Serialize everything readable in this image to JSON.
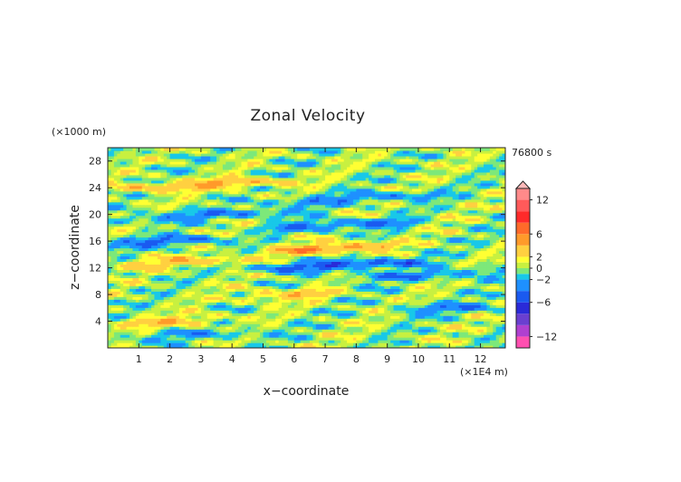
{
  "chart_data": {
    "type": "heatmap",
    "title": "Zonal Velocity",
    "time_label": "76800 s",
    "xlabel": "x−coordinate",
    "ylabel": "z−coordinate",
    "x_unit": "(×1E4 m)",
    "y_unit": "(×1000 m)",
    "xlim": [
      0,
      12.8
    ],
    "ylim": [
      0,
      30
    ],
    "x_ticks": [
      1,
      2,
      3,
      4,
      5,
      6,
      7,
      8,
      9,
      10,
      11,
      12
    ],
    "x_tick_labels": [
      "1",
      "2",
      "3",
      "4",
      "5",
      "6",
      "7",
      "8",
      "9",
      "10",
      "11",
      "12"
    ],
    "y_ticks": [
      4,
      8,
      12,
      16,
      20,
      24,
      28
    ],
    "y_tick_labels": [
      "4",
      "8",
      "12",
      "16",
      "20",
      "24",
      "28"
    ],
    "colorbar": {
      "levels": [
        -14,
        -12,
        -10,
        -8,
        -6,
        -4,
        -2,
        -1,
        0,
        1,
        2,
        4,
        6,
        8,
        10,
        12,
        14
      ],
      "colors": [
        "#ff4fb0",
        "#b040d0",
        "#6a3fd0",
        "#2a2ad8",
        "#1a5af0",
        "#1e90ff",
        "#18c8e8",
        "#7de87a",
        "#c8f040",
        "#ffff33",
        "#ffd040",
        "#ff9a2a",
        "#ff6a2a",
        "#ff2a2a",
        "#ff5a5a",
        "#ff8a8a"
      ],
      "tick_values": [
        12,
        6,
        2,
        0,
        -2,
        -6,
        -12
      ],
      "tick_labels": [
        "12",
        "6",
        "2",
        "0",
        "−2",
        "−6",
        "−12"
      ],
      "extend": "max"
    },
    "field_description_bands": [
      {
        "z": 24.5,
        "x_range": [
          0.5,
          5.5
        ],
        "sign": "positive",
        "peak": 4
      },
      {
        "z": 22.5,
        "x_range": [
          5.5,
          10.5
        ],
        "sign": "negative",
        "peak": -3
      },
      {
        "z": 20.0,
        "x_range": [
          0.5,
          6.0
        ],
        "sign": "negative",
        "peak": -3
      },
      {
        "z": 18.5,
        "x_range": [
          5.5,
          9.5
        ],
        "sign": "negative",
        "peak": -4
      },
      {
        "z": 16.0,
        "x_range": [
          0.0,
          3.5
        ],
        "sign": "negative",
        "peak": -4
      },
      {
        "z": 15.0,
        "x_range": [
          5.5,
          9.0
        ],
        "sign": "positive",
        "peak": 5
      },
      {
        "z": 13.0,
        "x_range": [
          0.5,
          4.5
        ],
        "sign": "positive",
        "peak": 3
      },
      {
        "z": 12.5,
        "x_range": [
          5.0,
          10.0
        ],
        "sign": "negative",
        "peak": -5
      },
      {
        "z": 11.0,
        "x_range": [
          8.0,
          12.5
        ],
        "sign": "negative",
        "peak": -3
      },
      {
        "z": 8.0,
        "x_range": [
          4.5,
          7.0
        ],
        "sign": "positive",
        "peak": 3
      },
      {
        "z": 6.0,
        "x_range": [
          9.5,
          12.5
        ],
        "sign": "negative",
        "peak": -3
      },
      {
        "z": 4.0,
        "x_range": [
          0.5,
          3.5
        ],
        "sign": "positive",
        "peak": 3
      },
      {
        "z": 2.0,
        "x_range": [
          0.5,
          5.0
        ],
        "sign": "negative",
        "peak": -2
      }
    ]
  }
}
